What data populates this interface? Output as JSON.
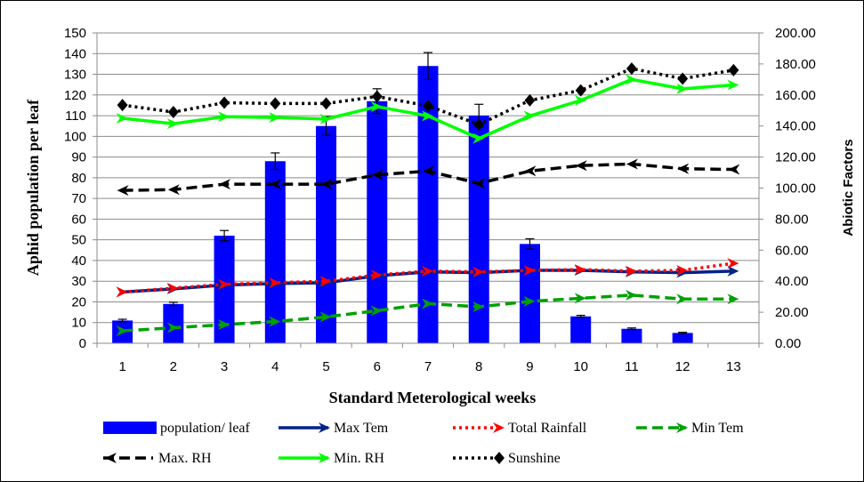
{
  "chart_data": {
    "type": "bar",
    "xlabel": "Standard Meterological weeks",
    "ylabel": "Aphid population per leaf",
    "y2label": "Abiotic Factors",
    "categories": [
      "1",
      "2",
      "3",
      "4",
      "5",
      "6",
      "7",
      "8",
      "9",
      "10",
      "11",
      "12",
      "13"
    ],
    "ylim": [
      0,
      150
    ],
    "y2lim": [
      0,
      200
    ],
    "yticks": [
      "0",
      "10",
      "20",
      "30",
      "40",
      "50",
      "60",
      "70",
      "80",
      "90",
      "100",
      "110",
      "120",
      "130",
      "140",
      "150"
    ],
    "y2ticks": [
      "0.00",
      "20.00",
      "40.00",
      "60.00",
      "80.00",
      "100.00",
      "120.00",
      "140.00",
      "160.00",
      "180.00",
      "200.00"
    ],
    "grid": true,
    "legend_position": "bottom",
    "bar_series": {
      "name": "population/ leaf",
      "color": "#0000ff",
      "values": [
        11,
        19,
        52,
        88,
        105,
        117,
        134,
        110,
        48,
        13,
        7,
        5,
        null
      ],
      "errors": [
        0.6,
        0.8,
        2.5,
        4,
        4.5,
        6,
        6.5,
        5.5,
        2.5,
        0.5,
        0.4,
        0.3,
        null
      ]
    },
    "line_series": [
      {
        "name": "Max Tem",
        "axis": "right",
        "color": "#002288",
        "style": "solid",
        "marker": "arrow-right",
        "values": [
          33,
          35,
          37.5,
          38.5,
          39,
          43.5,
          46,
          45.5,
          47,
          47,
          46,
          45.5,
          46.5
        ]
      },
      {
        "name": "Total Rainfall",
        "axis": "right",
        "color": "#ff0000",
        "style": "dotted",
        "marker": "arrow-right",
        "values": [
          33,
          35.5,
          38,
          39,
          40,
          44,
          46.5,
          46,
          47,
          47.5,
          46.5,
          47,
          51.5
        ]
      },
      {
        "name": "Min Tem",
        "axis": "right",
        "color": "#00a000",
        "style": "dashed",
        "marker": "arrow-right",
        "values": [
          8,
          10,
          12,
          14,
          17,
          21,
          25.5,
          23.5,
          27,
          29,
          31,
          28.5,
          28.5
        ]
      },
      {
        "name": "Max. RH",
        "axis": "right",
        "color": "#000000",
        "style": "dashed",
        "marker": "arrow-left",
        "values": [
          98.5,
          99,
          102.5,
          102.5,
          102.5,
          108.5,
          111,
          103,
          111,
          114.5,
          115.5,
          112.5,
          112
        ]
      },
      {
        "name": "Min. RH",
        "axis": "right",
        "color": "#00ff00",
        "style": "solid",
        "marker": "arrow-right",
        "values": [
          145,
          141.5,
          146,
          145.5,
          144.5,
          152.5,
          146.5,
          132,
          146.5,
          156.5,
          170,
          164,
          166.5
        ]
      },
      {
        "name": "Sunshine",
        "axis": "right",
        "color": "#000000",
        "style": "dotted",
        "marker": "diamond",
        "values": [
          153.5,
          149,
          155,
          154.5,
          154.5,
          159,
          153,
          141,
          156.5,
          163,
          177,
          170.5,
          176
        ]
      }
    ]
  }
}
